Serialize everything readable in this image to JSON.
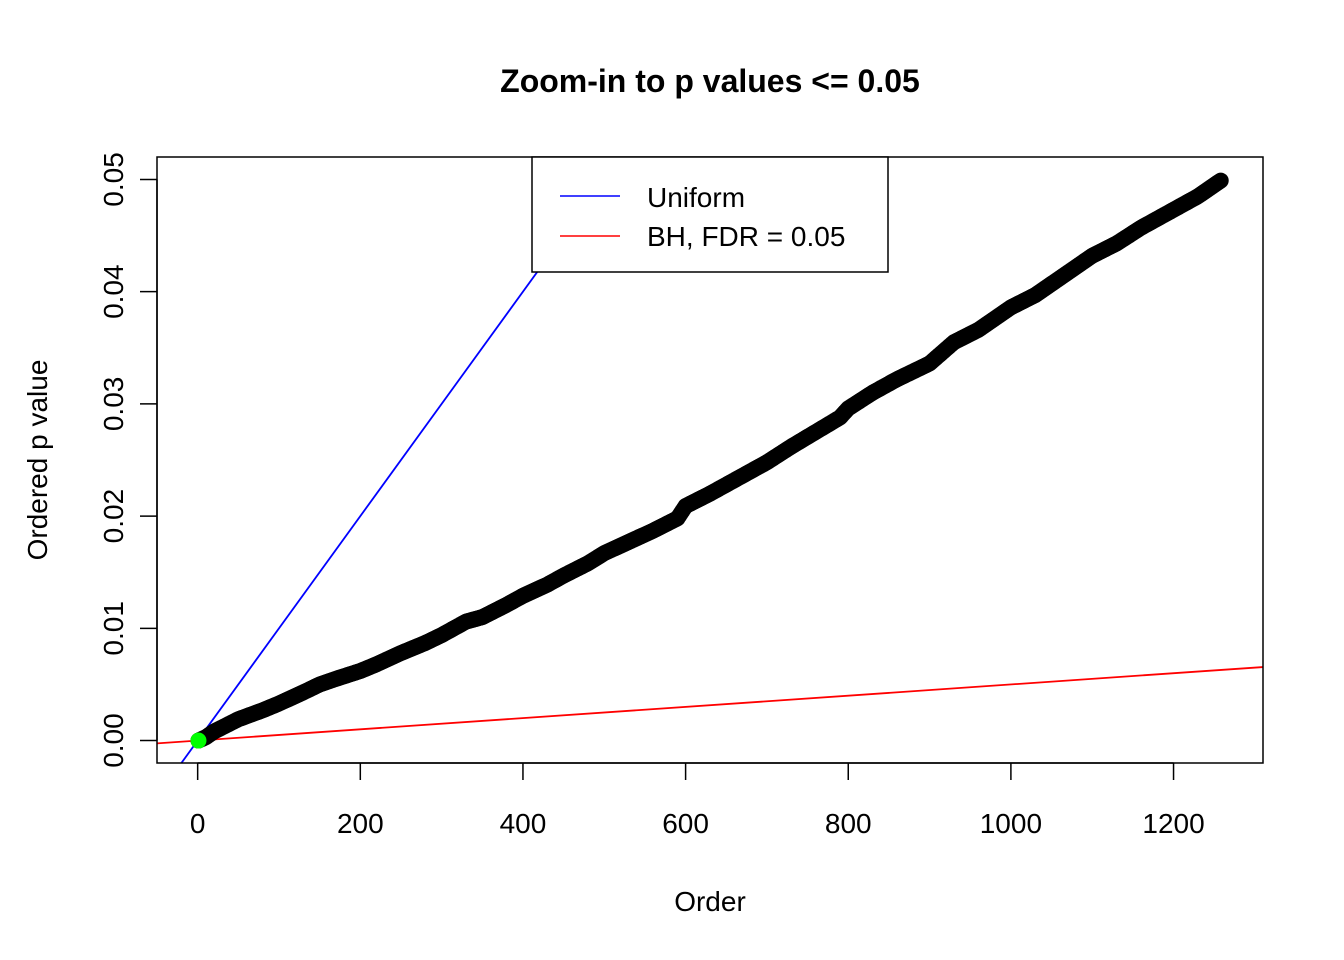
{
  "chart_data": {
    "type": "scatter",
    "title": "Zoom-in to p values <= 0.05",
    "xlabel": "Order",
    "ylabel": "Ordered p value",
    "xlim": [
      -50,
      1310
    ],
    "ylim": [
      -0.002,
      0.052
    ],
    "x_ticks": [
      0,
      200,
      400,
      600,
      800,
      1000,
      1200
    ],
    "x_tick_labels": [
      "0",
      "200",
      "400",
      "600",
      "800",
      "1000",
      "1200"
    ],
    "y_ticks": [
      0.0,
      0.01,
      0.02,
      0.03,
      0.04,
      0.05
    ],
    "y_tick_labels": [
      "0.00",
      "0.01",
      "0.02",
      "0.03",
      "0.04",
      "0.05"
    ],
    "grid": false,
    "legend": {
      "position": "top-center",
      "entries": [
        {
          "label": "Uniform",
          "color": "#0000ff"
        },
        {
          "label": "BH, FDR = 0.05",
          "color": "#ff0000"
        }
      ]
    },
    "series": [
      {
        "kind": "points",
        "color": "#000000",
        "x": [
          1,
          10,
          20,
          50,
          80,
          100,
          130,
          150,
          170,
          200,
          220,
          250,
          280,
          300,
          330,
          350,
          380,
          400,
          430,
          450,
          480,
          500,
          530,
          560,
          590,
          600,
          630,
          660,
          700,
          730,
          760,
          790,
          800,
          830,
          860,
          900,
          930,
          960,
          1000,
          1030,
          1060,
          1100,
          1130,
          1160,
          1200,
          1230,
          1258
        ],
        "y": [
          0.0,
          0.0003,
          0.0008,
          0.0019,
          0.0027,
          0.0033,
          0.0043,
          0.005,
          0.0055,
          0.0062,
          0.0068,
          0.0078,
          0.0087,
          0.0094,
          0.0106,
          0.011,
          0.0121,
          0.0129,
          0.0139,
          0.0147,
          0.0158,
          0.0167,
          0.0177,
          0.0187,
          0.0198,
          0.0209,
          0.022,
          0.0232,
          0.0248,
          0.0262,
          0.0275,
          0.0288,
          0.0296,
          0.031,
          0.0322,
          0.0336,
          0.0355,
          0.0366,
          0.0386,
          0.0397,
          0.0412,
          0.0432,
          0.0443,
          0.0457,
          0.0473,
          0.0485,
          0.0499
        ]
      },
      {
        "kind": "highlight-point",
        "color": "#00ff00",
        "x": [
          1
        ],
        "y": [
          0.0
        ]
      },
      {
        "kind": "line",
        "name": "Uniform",
        "color": "#0000ff",
        "intercept": 0,
        "slope": 0.0001
      },
      {
        "kind": "line",
        "name": "BH, FDR = 0.05",
        "color": "#ff0000",
        "intercept": 0,
        "slope": 5e-06
      }
    ]
  }
}
